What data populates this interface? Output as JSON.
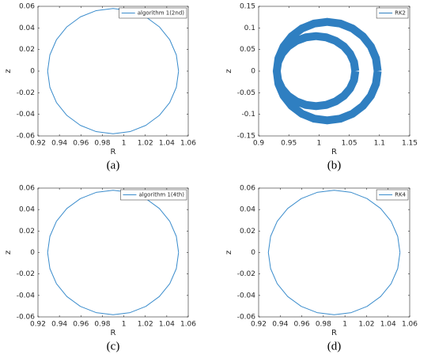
{
  "chart_data": [
    {
      "type": "line",
      "caption": "(a)",
      "xlabel": "R",
      "ylabel": "z",
      "xlim": [
        0.92,
        1.06
      ],
      "xticks": [
        0.92,
        0.94,
        0.96,
        0.98,
        1,
        1.02,
        1.04,
        1.06
      ],
      "ylim": [
        -0.06,
        0.06
      ],
      "yticks": [
        -0.06,
        -0.04,
        -0.02,
        0,
        0.02,
        0.04,
        0.06
      ],
      "legend": "northeast",
      "series": [
        {
          "name": "algorithm 1(2nd)",
          "color": "#3a8ccc",
          "x": [
            1.051,
            1.0489,
            1.0428,
            1.0331,
            1.0205,
            1.0058,
            0.99,
            0.9742,
            0.9595,
            0.9469,
            0.9372,
            0.9311,
            0.929,
            0.9311,
            0.9372,
            0.9469,
            0.9595,
            0.9742,
            0.99,
            1.0058,
            1.0205,
            1.0331,
            1.0428,
            1.0489,
            1.051
          ],
          "y": [
            0,
            0.015,
            0.029,
            0.041,
            0.0502,
            0.056,
            0.058,
            0.056,
            0.0502,
            0.041,
            0.029,
            0.015,
            0,
            -0.015,
            -0.029,
            -0.041,
            -0.0502,
            -0.056,
            -0.058,
            -0.056,
            -0.0502,
            -0.041,
            -0.029,
            -0.015,
            0
          ]
        }
      ]
    },
    {
      "type": "line",
      "caption": "(b)",
      "xlabel": "R",
      "ylabel": "z",
      "xlim": [
        0.9,
        1.15
      ],
      "xticks": [
        0.9,
        0.95,
        1,
        1.05,
        1.1,
        1.15
      ],
      "ylim": [
        -0.15,
        0.15
      ],
      "yticks": [
        -0.15,
        -0.1,
        -0.05,
        0,
        0.05,
        0.1,
        0.15
      ],
      "legend": "northeast",
      "series": [
        {
          "name": "RK2",
          "color": "#2f7fc1",
          "x": [
            1.097,
            1.0942,
            1.0858,
            1.0725,
            1.0553,
            1.0351,
            1.0135,
            0.9919,
            0.9717,
            0.9545,
            0.9412,
            0.9328,
            0.93,
            0.9328,
            0.9412,
            0.9545,
            0.9717,
            0.9919,
            1.0135,
            1.0351,
            1.0553,
            1.0725,
            1.0858,
            1.0942,
            1.097,
            null,
            1.06,
            1.0578,
            1.0513,
            1.041,
            1.0275,
            1.0118,
            0.995,
            0.9782,
            0.9625,
            0.949,
            0.9387,
            0.9322,
            0.93,
            0.9322,
            0.9387,
            0.949,
            0.9625,
            0.9782,
            0.995,
            1.0118,
            1.0275,
            1.041,
            1.0513,
            1.0578,
            1.06
          ],
          "y": [
            0,
            0.0295,
            0.057,
            0.0806,
            0.0987,
            0.1101,
            0.114,
            0.1101,
            0.0987,
            0.0806,
            0.057,
            0.0295,
            0,
            -0.0295,
            -0.057,
            -0.0806,
            -0.0987,
            -0.1101,
            -0.114,
            -0.1101,
            -0.0987,
            -0.0806,
            -0.057,
            -0.0295,
            0,
            null,
            0,
            0.021,
            0.0405,
            0.0573,
            0.0701,
            0.0782,
            0.081,
            0.0782,
            0.0701,
            0.0573,
            0.0405,
            0.021,
            0,
            -0.021,
            -0.0405,
            -0.0573,
            -0.0701,
            -0.0782,
            -0.081,
            -0.0782,
            -0.0701,
            -0.0573,
            -0.0405,
            -0.021,
            0
          ]
        }
      ]
    },
    {
      "type": "line",
      "caption": "(c)",
      "xlabel": "R",
      "ylabel": "z",
      "xlim": [
        0.92,
        1.06
      ],
      "xticks": [
        0.92,
        0.94,
        0.96,
        0.98,
        1,
        1.02,
        1.04,
        1.06
      ],
      "ylim": [
        -0.06,
        0.06
      ],
      "yticks": [
        -0.06,
        -0.04,
        -0.02,
        0,
        0.02,
        0.04,
        0.06
      ],
      "legend": "northeast",
      "series": [
        {
          "name": "algorithm 1(4th)",
          "color": "#3a8ccc",
          "x": [
            1.051,
            1.0489,
            1.0428,
            1.0331,
            1.0205,
            1.0058,
            0.99,
            0.9742,
            0.9595,
            0.9469,
            0.9372,
            0.9311,
            0.929,
            0.9311,
            0.9372,
            0.9469,
            0.9595,
            0.9742,
            0.99,
            1.0058,
            1.0205,
            1.0331,
            1.0428,
            1.0489,
            1.051
          ],
          "y": [
            0,
            0.015,
            0.029,
            0.041,
            0.0502,
            0.056,
            0.058,
            0.056,
            0.0502,
            0.041,
            0.029,
            0.015,
            0,
            -0.015,
            -0.029,
            -0.041,
            -0.0502,
            -0.056,
            -0.058,
            -0.056,
            -0.0502,
            -0.041,
            -0.029,
            -0.015,
            0
          ]
        }
      ]
    },
    {
      "type": "line",
      "caption": "(d)",
      "xlabel": "R",
      "ylabel": "z",
      "xlim": [
        0.92,
        1.06
      ],
      "xticks": [
        0.92,
        0.94,
        0.96,
        0.98,
        1,
        1.02,
        1.04,
        1.06
      ],
      "ylim": [
        -0.06,
        0.06
      ],
      "yticks": [
        -0.06,
        -0.04,
        -0.02,
        0,
        0.02,
        0.04,
        0.06
      ],
      "legend": "northeast",
      "series": [
        {
          "name": "RK4",
          "color": "#3a8ccc",
          "x": [
            1.051,
            1.0489,
            1.0428,
            1.0331,
            1.0205,
            1.0058,
            0.99,
            0.9742,
            0.9595,
            0.9469,
            0.9372,
            0.9311,
            0.929,
            0.9311,
            0.9372,
            0.9469,
            0.9595,
            0.9742,
            0.99,
            1.0058,
            1.0205,
            1.0331,
            1.0428,
            1.0489,
            1.051
          ],
          "y": [
            0,
            0.015,
            0.029,
            0.041,
            0.0502,
            0.056,
            0.058,
            0.056,
            0.0502,
            0.041,
            0.029,
            0.015,
            0,
            -0.015,
            -0.029,
            -0.041,
            -0.0502,
            -0.056,
            -0.058,
            -0.056,
            -0.0502,
            -0.041,
            -0.029,
            -0.015,
            0
          ]
        }
      ]
    }
  ]
}
